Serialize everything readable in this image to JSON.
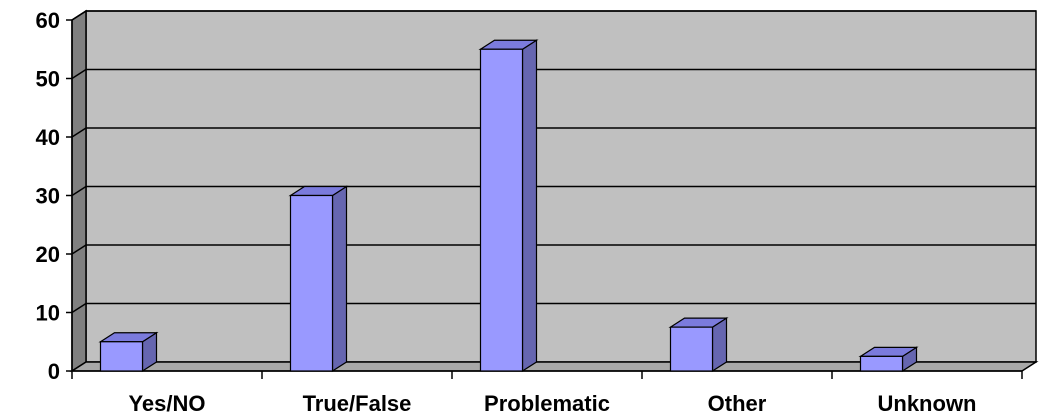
{
  "colors": {
    "back_wall": "#c0c0c0",
    "side_wall": "#808080",
    "floor": "#a8a8a8",
    "bar_front": "#9999ff",
    "bar_top": "#7b7bdd",
    "bar_side": "#6666b0",
    "gridline": "#000000",
    "axis": "#000000"
  },
  "chart_data": {
    "type": "bar",
    "style": "3d-column",
    "title": "",
    "xlabel": "",
    "ylabel": "",
    "categories": [
      "Yes/NO",
      "True/False",
      "Problematic",
      "Other",
      "Unknown"
    ],
    "values": [
      5,
      30,
      55,
      7.5,
      2.5
    ],
    "ylim": [
      0,
      60
    ],
    "yticks": [
      0,
      10,
      20,
      30,
      40,
      50,
      60
    ],
    "ytick_labels": [
      "0",
      "10",
      "20",
      "30",
      "40",
      "50",
      "60"
    ],
    "grid": true,
    "legend": "none"
  }
}
